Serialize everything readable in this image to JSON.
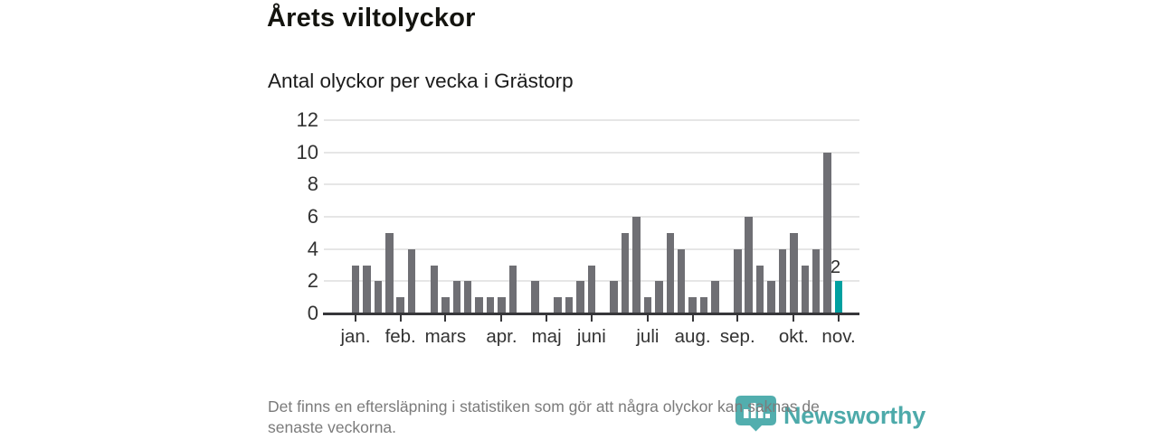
{
  "header": {
    "title": "Årets viltolyckor",
    "subtitle": "Antal olyckor per vecka i Grästorp"
  },
  "chart_data": {
    "type": "bar",
    "title": "Årets viltolyckor",
    "subtitle": "Antal olyckor per vecka i Grästorp",
    "x_unit": "vecka",
    "weeks": [
      1,
      2,
      3,
      4,
      5,
      6,
      7,
      8,
      9,
      10,
      11,
      12,
      13,
      14,
      15,
      16,
      17,
      18,
      19,
      20,
      21,
      22,
      23,
      24,
      25,
      26,
      27,
      28,
      29,
      30,
      31,
      32,
      33,
      34,
      35,
      36,
      37,
      38,
      39,
      40,
      41,
      42,
      43,
      44
    ],
    "values": [
      3,
      3,
      2,
      5,
      1,
      4,
      0,
      3,
      1,
      2,
      2,
      1,
      1,
      1,
      3,
      0,
      2,
      0,
      1,
      1,
      2,
      3,
      0,
      2,
      5,
      6,
      1,
      2,
      5,
      4,
      1,
      1,
      2,
      0,
      4,
      6,
      3,
      2,
      4,
      5,
      3,
      4,
      10,
      2
    ],
    "ylim": [
      0,
      12
    ],
    "yticks": [
      0,
      2,
      4,
      6,
      8,
      10,
      12
    ],
    "grid": true,
    "month_ticks": [
      {
        "label": "jan.",
        "week": 1
      },
      {
        "label": "feb.",
        "week": 5
      },
      {
        "label": "mars",
        "week": 9
      },
      {
        "label": "apr.",
        "week": 14
      },
      {
        "label": "maj",
        "week": 18
      },
      {
        "label": "juni",
        "week": 22
      },
      {
        "label": "juli",
        "week": 27
      },
      {
        "label": "aug.",
        "week": 31
      },
      {
        "label": "sep.",
        "week": 35
      },
      {
        "label": "okt.",
        "week": 40
      },
      {
        "label": "nov.",
        "week": 44
      }
    ],
    "highlight_last_bar": true,
    "last_value_label": "2",
    "colors": {
      "bar": "#6f6f74",
      "highlight": "#00a0a0",
      "grid": "#e6e6e6",
      "axis": "#37373a",
      "tick_text": "#333333"
    }
  },
  "footer": {
    "note_lines": [
      "Det finns en eftersläpning i statistiken som gör att några olyckor kan saknas de",
      "senaste veckorna."
    ],
    "brand": "Newsworthy"
  }
}
